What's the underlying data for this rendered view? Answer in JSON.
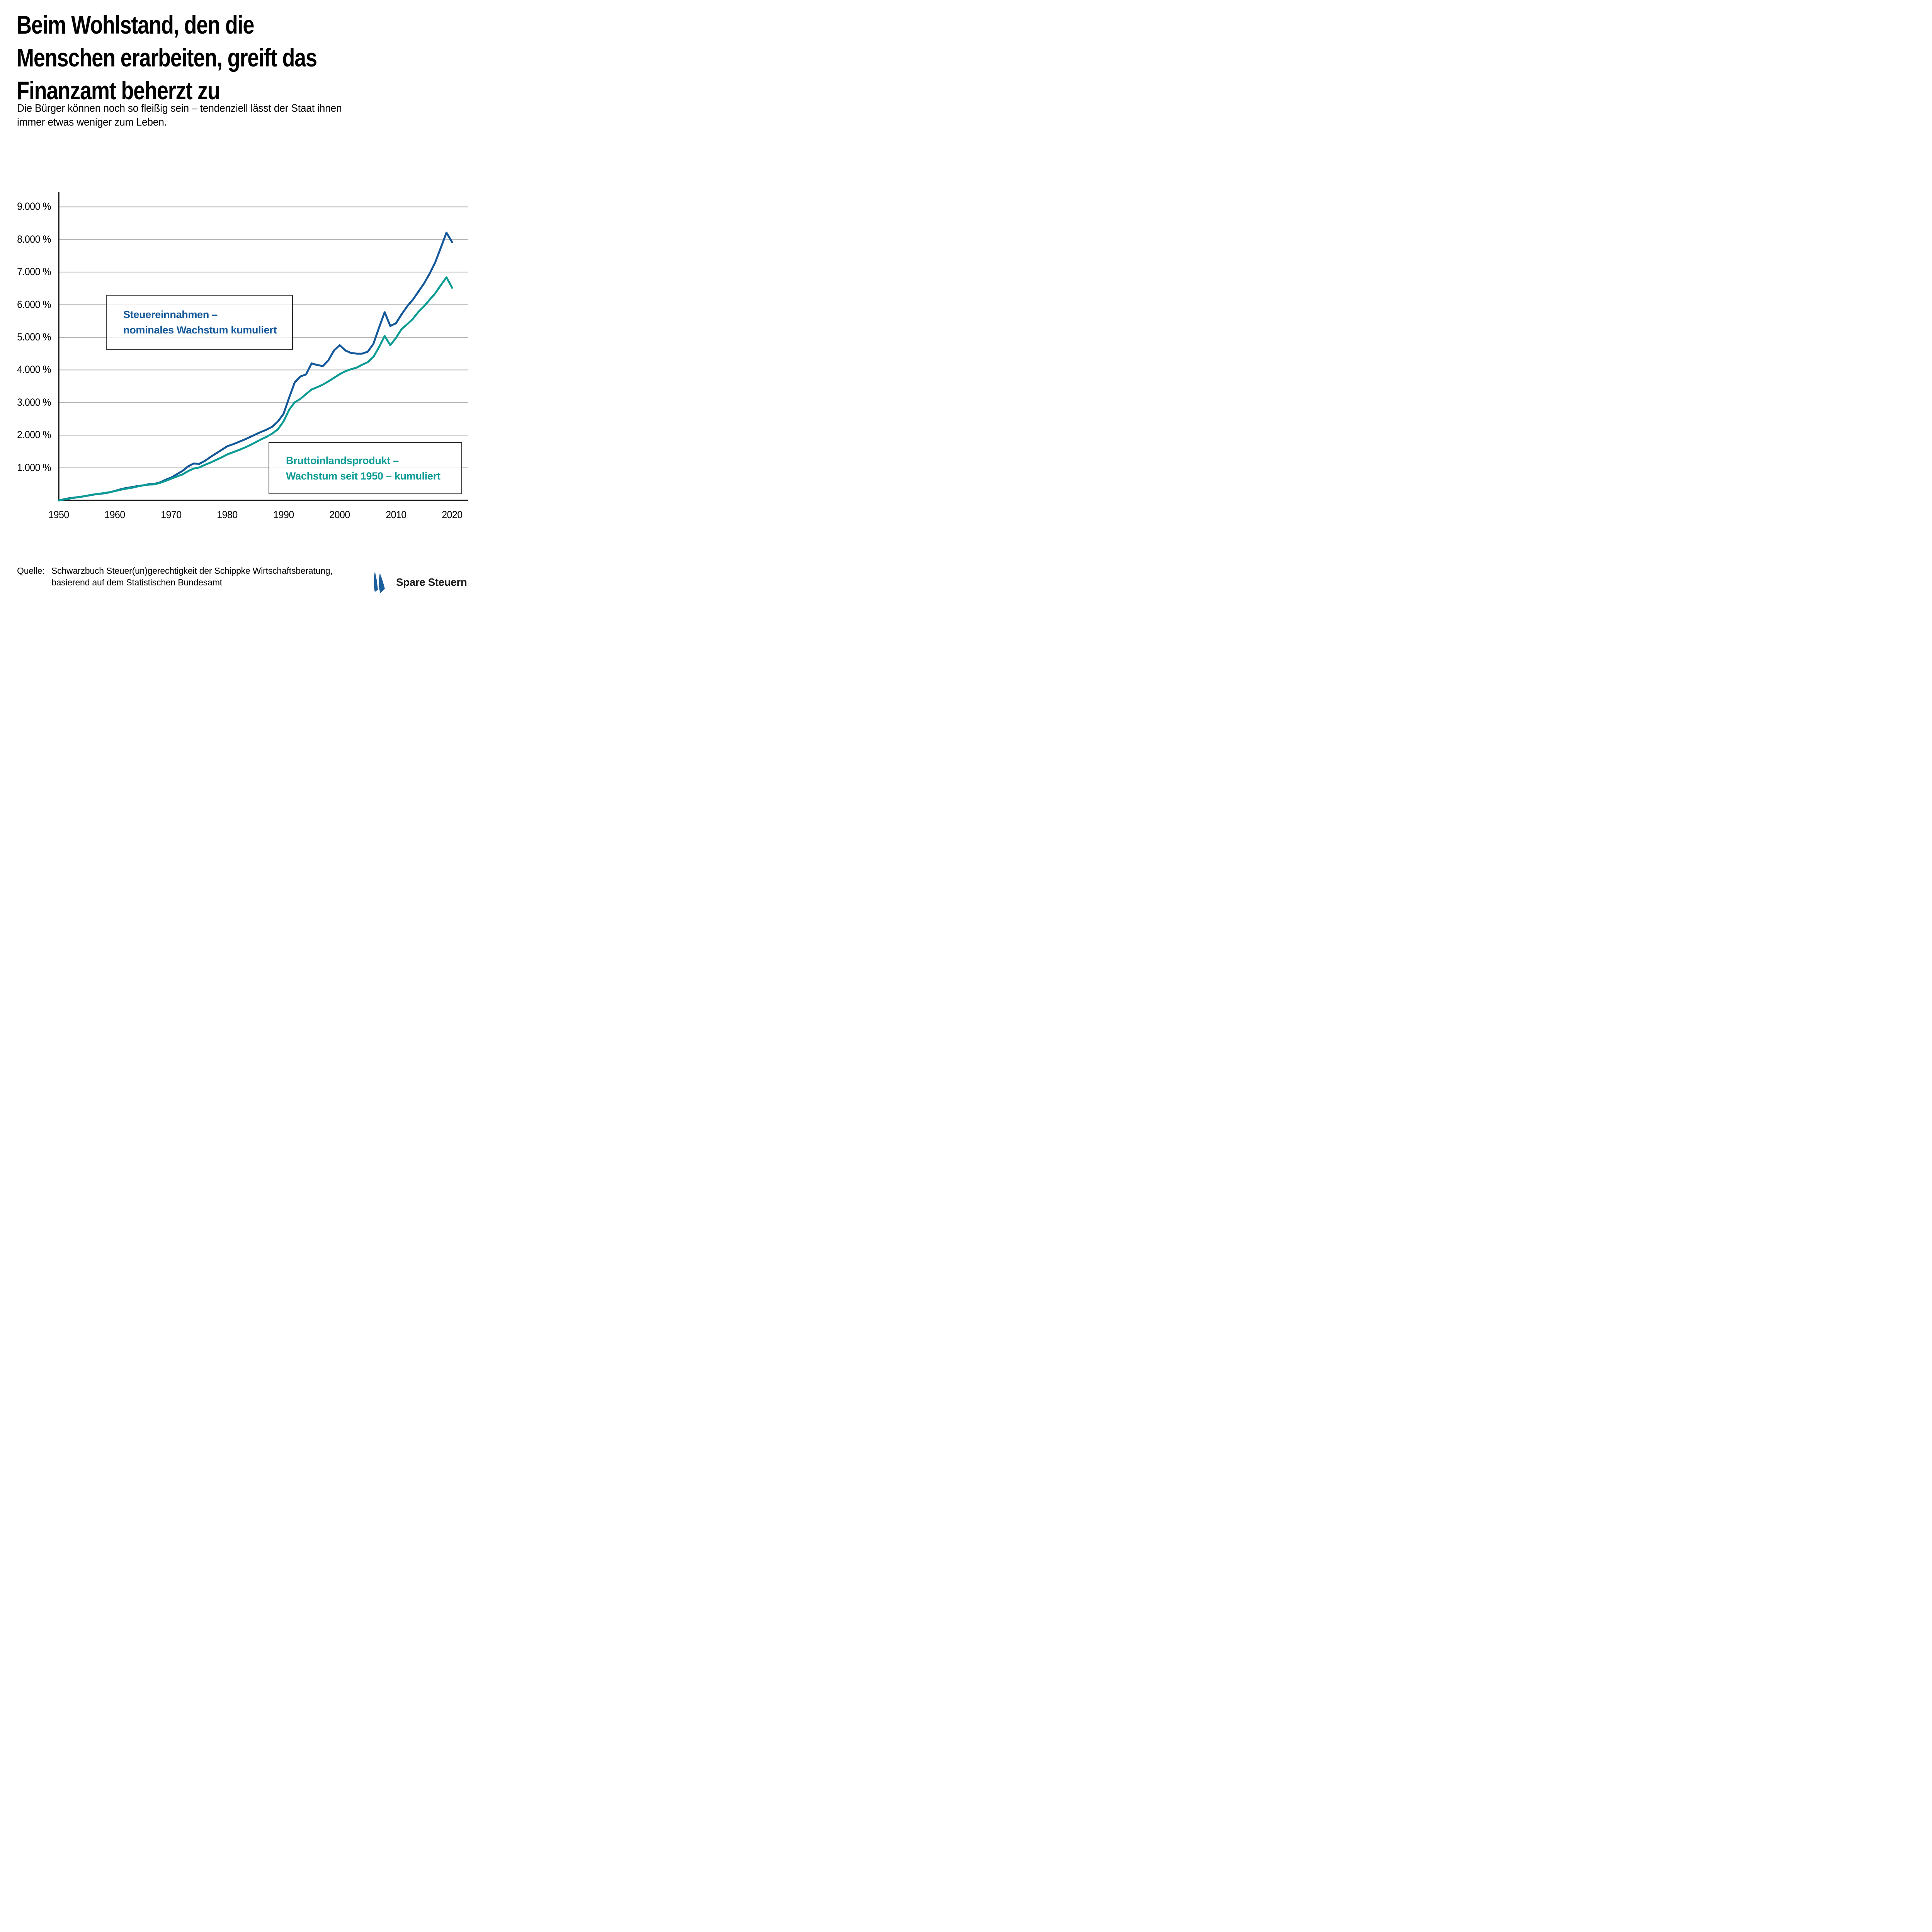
{
  "header": {
    "title_lines": [
      "Beim Wohlstand, den die",
      "Menschen erarbeiten, greift das",
      "Finanzamt beherzt zu"
    ],
    "subtitle_lines": [
      "Die Bürger können noch so fleißig sein – tendenziell lässt der Staat ihnen",
      "immer etwas weniger zum Leben."
    ]
  },
  "chart_data": {
    "type": "line",
    "title": "",
    "xlabel": "",
    "ylabel": "",
    "grid": true,
    "legend_position": "boxed annotations inside plot",
    "xlim": [
      1950,
      2022.9
    ],
    "ylim": [
      0,
      9455
    ],
    "y_ticks": [
      {
        "value": 1000,
        "label": "1.000 %"
      },
      {
        "value": 2000,
        "label": "2.000 %"
      },
      {
        "value": 3000,
        "label": "3.000 %"
      },
      {
        "value": 4000,
        "label": "4.000 %"
      },
      {
        "value": 5000,
        "label": "5.000 %"
      },
      {
        "value": 6000,
        "label": "6.000 %"
      },
      {
        "value": 7000,
        "label": "7.000 %"
      },
      {
        "value": 8000,
        "label": "8.000 %"
      },
      {
        "value": 9000,
        "label": "9.000 %"
      }
    ],
    "x_ticks": [
      {
        "value": 1950,
        "label": "1950"
      },
      {
        "value": 1960,
        "label": "1960"
      },
      {
        "value": 1970,
        "label": "1970"
      },
      {
        "value": 1980,
        "label": "1980"
      },
      {
        "value": 1990,
        "label": "1990"
      },
      {
        "value": 2000,
        "label": "2000"
      },
      {
        "value": 2010,
        "label": "2010"
      },
      {
        "value": 2020,
        "label": "2020"
      }
    ],
    "years": [
      1950,
      1951,
      1952,
      1953,
      1954,
      1955,
      1956,
      1957,
      1958,
      1959,
      1960,
      1961,
      1962,
      1963,
      1964,
      1965,
      1966,
      1967,
      1968,
      1969,
      1970,
      1971,
      1972,
      1973,
      1974,
      1975,
      1976,
      1977,
      1978,
      1979,
      1980,
      1981,
      1982,
      1983,
      1984,
      1985,
      1986,
      1987,
      1988,
      1989,
      1990,
      1991,
      1992,
      1993,
      1994,
      1995,
      1996,
      1997,
      1998,
      1999,
      2000,
      2001,
      2002,
      2003,
      2004,
      2005,
      2006,
      2007,
      2008,
      2009,
      2010,
      2011,
      2012,
      2013,
      2014,
      2015,
      2016,
      2017,
      2018,
      2019,
      2020
    ],
    "series": [
      {
        "id": "steuern",
        "name": "Steuereinnahmen – nominales Wachstum kumuliert",
        "color": "#14589A",
        "unit": "%",
        "values": [
          0,
          35,
          70,
          90,
          110,
          140,
          172,
          198,
          215,
          245,
          290,
          340,
          380,
          405,
          440,
          460,
          495,
          505,
          550,
          630,
          700,
          800,
          900,
          1040,
          1130,
          1120,
          1210,
          1330,
          1440,
          1550,
          1660,
          1720,
          1790,
          1860,
          1940,
          2020,
          2100,
          2170,
          2260,
          2420,
          2650,
          3150,
          3620,
          3800,
          3860,
          4200,
          4150,
          4120,
          4300,
          4600,
          4760,
          4600,
          4520,
          4500,
          4500,
          4560,
          4800,
          5300,
          5770,
          5350,
          5430,
          5700,
          5950,
          6150,
          6400,
          6650,
          6950,
          7300,
          7750,
          8210,
          7920
        ]
      },
      {
        "id": "bip",
        "name": "Bruttoinlandsprodukt – Wachstum seit 1950 – kumuliert",
        "color": "#0A9B94",
        "unit": "%",
        "values": [
          0,
          28,
          58,
          88,
          112,
          145,
          175,
          200,
          220,
          250,
          285,
          325,
          360,
          385,
          425,
          460,
          485,
          490,
          535,
          595,
          665,
          730,
          795,
          895,
          975,
          1010,
          1090,
          1160,
          1240,
          1320,
          1410,
          1475,
          1540,
          1610,
          1690,
          1780,
          1870,
          1950,
          2050,
          2180,
          2420,
          2780,
          3010,
          3110,
          3260,
          3400,
          3470,
          3550,
          3650,
          3760,
          3870,
          3960,
          4020,
          4070,
          4160,
          4240,
          4400,
          4700,
          5040,
          4760,
          4980,
          5250,
          5400,
          5560,
          5780,
          5950,
          6150,
          6350,
          6600,
          6840,
          6520
        ]
      }
    ],
    "annotations": [
      {
        "id": "steuern",
        "lines": [
          "Steuereinnahmen –",
          "nominales Wachstum kumuliert"
        ],
        "color": "#14589A"
      },
      {
        "id": "bip",
        "lines": [
          "Bruttoinlandsprodukt –",
          "Wachstum seit 1950 – kumuliert"
        ],
        "color": "#0A9B94"
      }
    ],
    "style": {
      "grid_color": "#B3B3B3",
      "axis_color": "#1A1A1A"
    }
  },
  "footer": {
    "source_label": "Quelle:",
    "source_lines": [
      "Schwarzbuch Steuer(un)gerechtigkeit der Schippke Wirtschaftsberatung,",
      "basierend auf dem Statistischen Bundesamt"
    ],
    "logo_text": "Spare Steuern",
    "logo_color": "#1B5E9C"
  }
}
